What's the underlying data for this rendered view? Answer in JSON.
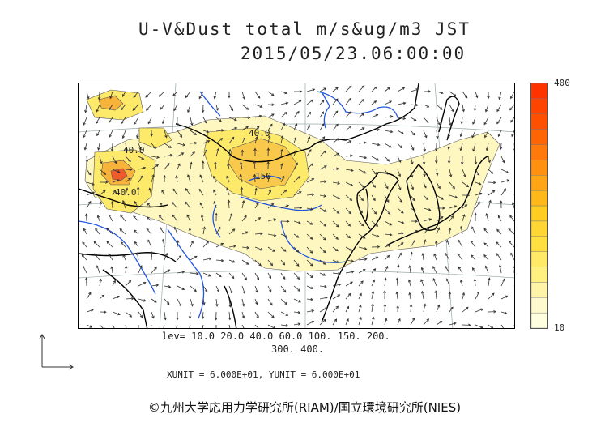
{
  "title": {
    "line1": "U-V&Dust total m/s&ug/m3 JST",
    "line2": "2015/05/23.06:00:00"
  },
  "colorbar": {
    "max_label": "400",
    "min_label": "10",
    "colors": [
      "#ffffe0",
      "#fffacd",
      "#fff3a8",
      "#fff080",
      "#ffe966",
      "#ffe040",
      "#ffd633",
      "#ffcc22",
      "#ffb81a",
      "#ffa515",
      "#ff9010",
      "#ff7a0a",
      "#ff6405",
      "#ff5000",
      "#ff4400",
      "#ff3300"
    ]
  },
  "contour_labels": [
    "40.0",
    "40.0",
    "40.0",
    "150"
  ],
  "levels": {
    "line1": "lev= 10.0 20.0 40.0 60.0 100. 150. 200.",
    "line2": "300. 400."
  },
  "units_text": "XUNIT = 6.000E+01, YUNIT = 6.000E+01",
  "credit": "©九州大学応用力学研究所(RIAM)/国立環境研究所(NIES)",
  "colors": {
    "dust_low": "#fff7c0",
    "dust_mid": "#fde96a",
    "dust_high": "#f8b33a",
    "dust_peak": "#ef5b2a",
    "rivers": "#2255dd",
    "coast": "#000000"
  }
}
